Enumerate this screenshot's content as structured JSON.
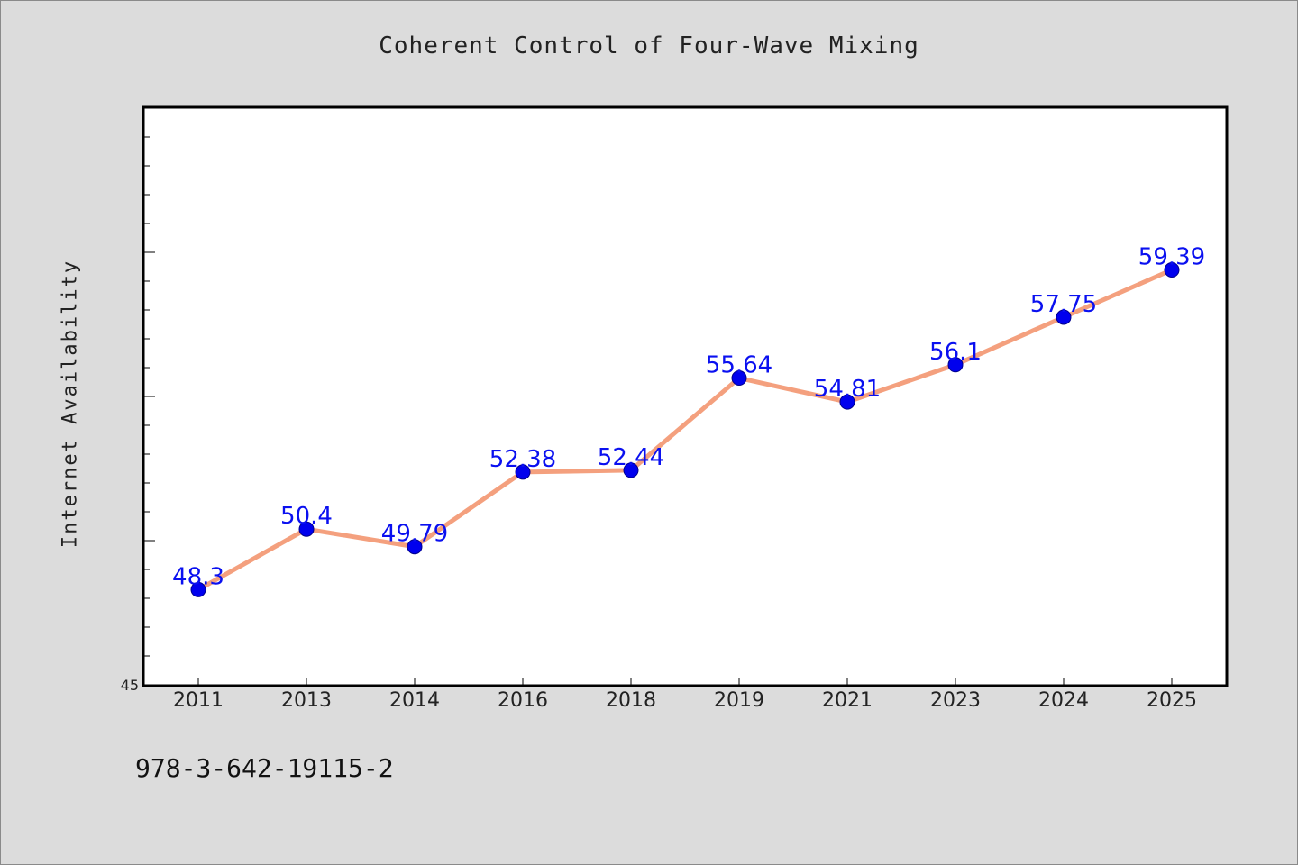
{
  "chart_data": {
    "type": "line",
    "title": "Coherent Control of Four-Wave Mixing",
    "xlabel": "",
    "ylabel": "Internet Availability",
    "categories": [
      "2011",
      "2013",
      "2014",
      "2016",
      "2018",
      "2019",
      "2021",
      "2023",
      "2024",
      "2025"
    ],
    "series": [
      {
        "values": [
          48.3,
          50.4,
          49.79,
          52.38,
          52.44,
          55.64,
          54.81,
          56.1,
          57.75,
          59.39
        ],
        "labels": [
          "48.3",
          "50.4",
          "49.79",
          "52.38",
          "52.44",
          "55.64",
          "54.81",
          "56.1",
          "57.75",
          "59.39"
        ]
      }
    ],
    "ylim": [
      45,
      65
    ],
    "y_tick_labels": [
      "45"
    ],
    "grid": false,
    "legend": "none",
    "line_color": "#f4a07e",
    "marker_color": "#0000ee",
    "label_color": "#0a10f0"
  },
  "footnote": "978-3-642-19115-2"
}
